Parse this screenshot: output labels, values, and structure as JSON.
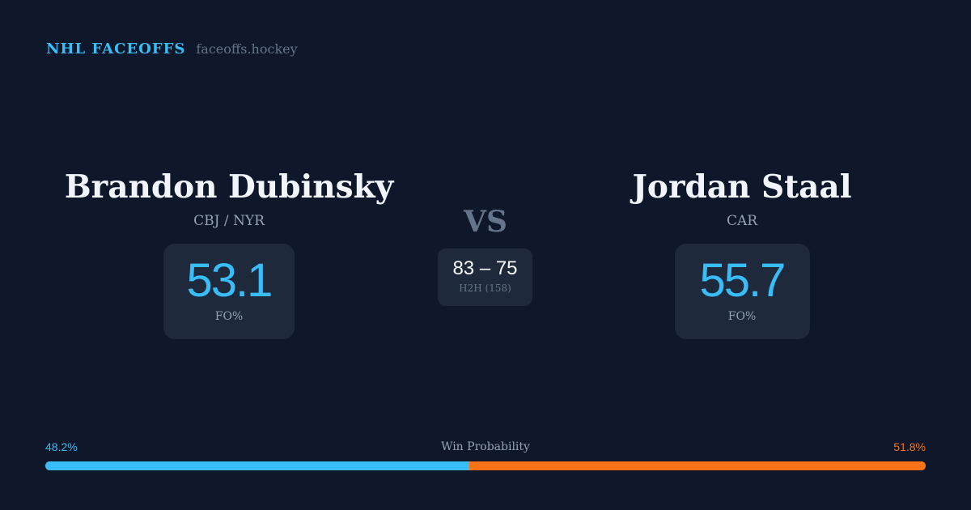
{
  "brand": {
    "title": "NHL FACEOFFS",
    "url": "faceoffs.hockey"
  },
  "left": {
    "name": "Brandon Dubinsky",
    "team": "CBJ / NYR",
    "fo_pct": "53.1",
    "fo_label": "FO%"
  },
  "right": {
    "name": "Jordan Staal",
    "team": "CAR",
    "fo_pct": "55.7",
    "fo_label": "FO%"
  },
  "vs": "VS",
  "h2h": {
    "score": "83 – 75",
    "label": "H2H (158)"
  },
  "win_probability": {
    "label": "Win Probability",
    "left_pct": "48.2%",
    "right_pct": "51.8%",
    "left_value": 48.2,
    "colors": {
      "left": "#38bdf8",
      "right": "#f97316"
    }
  }
}
